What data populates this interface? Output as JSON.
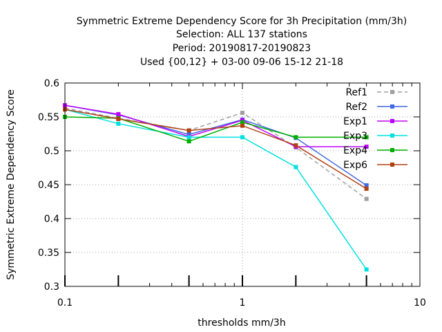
{
  "chart_data": {
    "type": "line",
    "title_lines": [
      "Symmetric Extreme Dependency Score  for 3h Precipitation (mm/3h)",
      "Selection: ALL     137 stations",
      "Period: 20190817-20190823",
      "Used {00,12} + 03-00 09-06 15-12 21-18"
    ],
    "xlabel": "thresholds mm/3h",
    "ylabel": "Symmetric Extreme Dependency Score",
    "x_scale": "log",
    "xlim": [
      0.1,
      10
    ],
    "ylim": [
      0.3,
      0.6
    ],
    "x_ticks": [
      {
        "value": 0.1,
        "label": "0.1"
      },
      {
        "value": 1,
        "label": "1"
      },
      {
        "value": 10,
        "label": "10"
      }
    ],
    "y_ticks": [
      {
        "value": 0.3,
        "label": "0.3"
      },
      {
        "value": 0.35,
        "label": "0.35"
      },
      {
        "value": 0.4,
        "label": "0.4"
      },
      {
        "value": 0.45,
        "label": "0.45"
      },
      {
        "value": 0.5,
        "label": "0.5"
      },
      {
        "value": 0.55,
        "label": "0.55"
      },
      {
        "value": 0.6,
        "label": "0.6"
      }
    ],
    "grid": true,
    "legend_position": "top-right",
    "x": [
      0.1,
      0.2,
      0.5,
      1,
      2,
      5
    ],
    "series": [
      {
        "name": "Ref1",
        "color": "#a0a0a0",
        "dashed": true,
        "values": [
          0.563,
          0.548,
          0.53,
          0.556,
          0.505,
          0.429
        ]
      },
      {
        "name": "Ref2",
        "color": "#4169e1",
        "dashed": false,
        "values": [
          0.567,
          0.553,
          0.524,
          0.546,
          0.519,
          0.449
        ]
      },
      {
        "name": "Exp1",
        "color": "#c000ff",
        "dashed": false,
        "values": [
          0.567,
          0.554,
          0.521,
          0.545,
          0.506,
          0.506
        ]
      },
      {
        "name": "Exp3",
        "color": "#00e0e0",
        "dashed": false,
        "values": [
          0.561,
          0.54,
          0.52,
          0.52,
          0.476,
          0.325
        ]
      },
      {
        "name": "Exp4",
        "color": "#00b000",
        "dashed": false,
        "values": [
          0.55,
          0.548,
          0.514,
          0.542,
          0.52,
          0.52
        ]
      },
      {
        "name": "Exp6",
        "color": "#b04010",
        "dashed": false,
        "values": [
          0.561,
          0.547,
          0.53,
          0.537,
          0.508,
          0.444
        ]
      }
    ]
  }
}
